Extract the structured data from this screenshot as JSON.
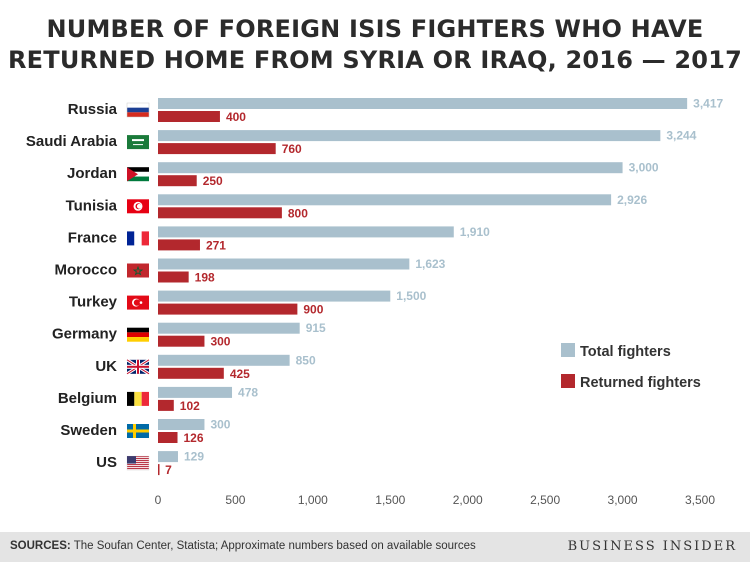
{
  "title_lines": [
    "NUMBER OF FOREIGN ISIS FIGHTERS WHO HAVE",
    "RETURNED HOME FROM SYRIA OR IRAQ, 2016 — 2017"
  ],
  "colors": {
    "total": "#a9c0cd",
    "returned": "#b3282d",
    "total_label": "#a9c0cd",
    "returned_label": "#b3282d",
    "axis_text": "#555555",
    "footer_bg": "#e4e4e4"
  },
  "chart_data": {
    "type": "bar",
    "orientation": "horizontal",
    "categories": [
      "Russia",
      "Saudi Arabia",
      "Jordan",
      "Tunisia",
      "France",
      "Morocco",
      "Turkey",
      "Germany",
      "UK",
      "Belgium",
      "Sweden",
      "US"
    ],
    "flag_icons": [
      "russia-flag-icon",
      "saudi-arabia-flag-icon",
      "jordan-flag-icon",
      "tunisia-flag-icon",
      "france-flag-icon",
      "morocco-flag-icon",
      "turkey-flag-icon",
      "germany-flag-icon",
      "uk-flag-icon",
      "belgium-flag-icon",
      "sweden-flag-icon",
      "us-flag-icon"
    ],
    "series": [
      {
        "name": "Total fighters",
        "values": [
          3417,
          3244,
          3000,
          2926,
          1910,
          1623,
          1500,
          915,
          850,
          478,
          300,
          129
        ],
        "labels": [
          "3,417",
          "3,244",
          "3,000",
          "2,926",
          "1,910",
          "1,623",
          "1,500",
          "915",
          "850",
          "478",
          "300",
          "129"
        ]
      },
      {
        "name": "Returned fighters",
        "values": [
          400,
          760,
          250,
          800,
          271,
          198,
          900,
          300,
          425,
          102,
          126,
          7
        ],
        "labels": [
          "400",
          "760",
          "250",
          "800",
          "271",
          "198",
          "900",
          "300",
          "425",
          "102",
          "126",
          "7"
        ]
      }
    ],
    "xlim": [
      0,
      3500
    ],
    "xticks": [
      0,
      500,
      1000,
      1500,
      2000,
      2500,
      3000,
      3500
    ],
    "xtick_labels": [
      "0",
      "500",
      "1,000",
      "1,500",
      "2,000",
      "2,500",
      "3,000",
      "3,500"
    ],
    "legend_position": "right",
    "grid": false
  },
  "footer": {
    "sources_label": "SOURCES:",
    "sources_text": " The Soufan Center, Statista; Approximate numbers based on available sources",
    "brand": "BUSINESS INSIDER"
  }
}
